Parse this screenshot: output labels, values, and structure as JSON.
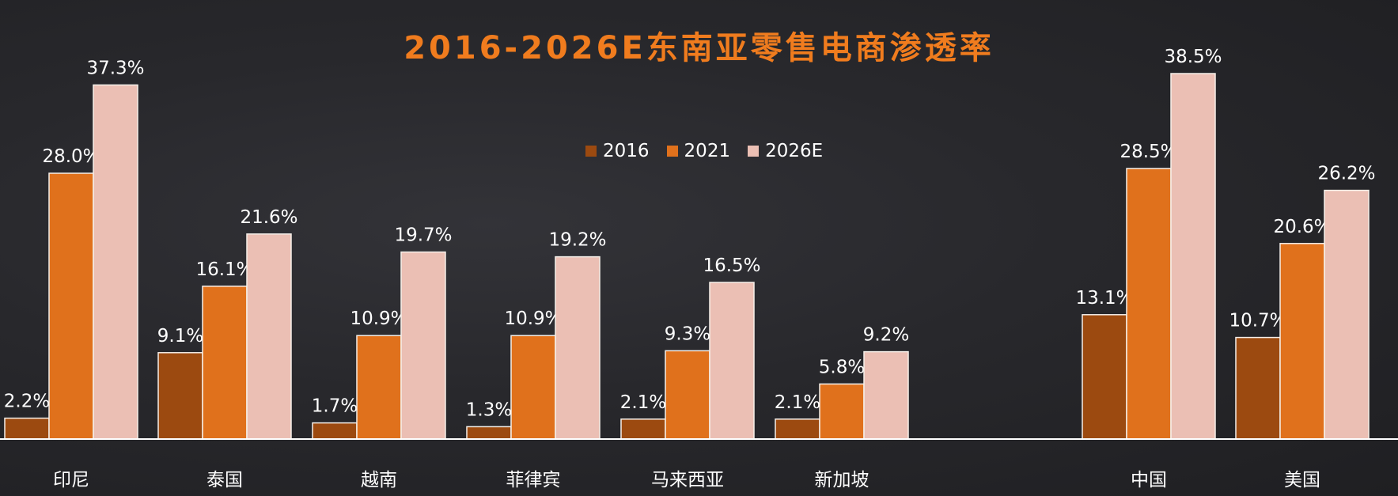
{
  "chart_data": {
    "type": "bar",
    "title": "2016-2026E东南亚零售电商渗透率",
    "categories": [
      "印尼",
      "泰国",
      "越南",
      "菲律宾",
      "马来西亚",
      "新加坡",
      "中国",
      "美国"
    ],
    "series": [
      {
        "name": "2016",
        "values": [
          2.2,
          9.1,
          1.7,
          1.3,
          2.1,
          2.1,
          13.1,
          10.7
        ],
        "labels": [
          "2.2%",
          "9.1%",
          "1.7%",
          "1.3%",
          "2.1%",
          "2.1%",
          "13.1%",
          "10.7%"
        ],
        "color": "#9c4a10"
      },
      {
        "name": "2021",
        "values": [
          28.0,
          16.1,
          10.9,
          10.9,
          9.3,
          5.8,
          28.5,
          20.6
        ],
        "labels": [
          "28.0%",
          "16.1%",
          "10.9%",
          "10.9%",
          "9.3%",
          "5.8%",
          "28.5%",
          "20.6%"
        ],
        "color": "#e0711c"
      },
      {
        "name": "2026E",
        "values": [
          37.3,
          21.6,
          19.7,
          19.2,
          16.5,
          9.2,
          38.5,
          26.2
        ],
        "labels": [
          "37.3%",
          "21.6%",
          "19.7%",
          "19.2%",
          "16.5%",
          "9.2%",
          "38.5%",
          "26.2%"
        ],
        "color": "#ebbfb4"
      }
    ],
    "xlabel": "",
    "ylabel": "",
    "ylim": [
      0,
      40
    ],
    "grid": false,
    "legend_position": "top-center"
  }
}
